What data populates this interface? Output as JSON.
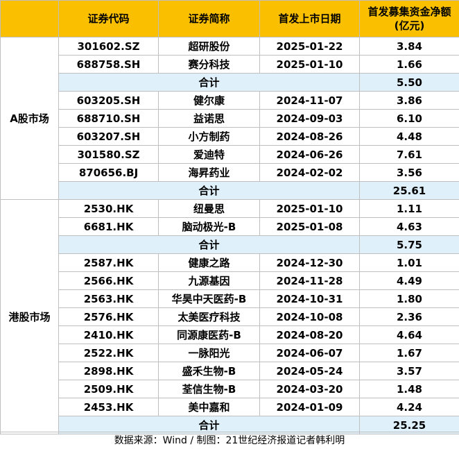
{
  "headers": [
    "证券代码",
    "证券简称",
    "首发上市日期",
    "首发募集资金净额",
    "(亿元)"
  ],
  "a_market": {
    "label": "A股市场",
    "group1": [
      {
        "code": "301602.SZ",
        "name": "超研股份",
        "date": "2025-01-22",
        "amount": "3.84"
      },
      {
        "code": "688758.SH",
        "name": "赛分科技",
        "date": "2025-01-10",
        "amount": "1.66"
      }
    ],
    "group1_total": {
      "label": "合计",
      "amount": "5.50"
    },
    "group2": [
      {
        "code": "603205.SH",
        "name": "健尔康",
        "date": "2024-11-07",
        "amount": "3.86"
      },
      {
        "code": "688710.SH",
        "name": "益诺思",
        "date": "2024-09-03",
        "amount": "6.10"
      },
      {
        "code": "603207.SH",
        "name": "小方制药",
        "date": "2024-08-26",
        "amount": "4.48"
      },
      {
        "code": "301580.SZ",
        "name": "爱迪特",
        "date": "2024-06-26",
        "amount": "7.61"
      },
      {
        "code": "870656.BJ",
        "name": "海昇药业",
        "date": "2024-02-02",
        "amount": "3.56"
      }
    ],
    "group2_total": {
      "label": "合计",
      "amount": "25.61"
    }
  },
  "hk_market": {
    "label": "港股市场",
    "group1": [
      {
        "code": "2530.HK",
        "name": "纽曼思",
        "date": "2025-01-10",
        "amount": "1.11"
      },
      {
        "code": "6681.HK",
        "name": "脑动极光-B",
        "date": "2025-01-08",
        "amount": "4.63"
      }
    ],
    "group1_total": {
      "label": "合计",
      "amount": "5.75"
    },
    "group2": [
      {
        "code": "2587.HK",
        "name": "健康之路",
        "date": "2024-12-30",
        "amount": "1.01"
      },
      {
        "code": "2566.HK",
        "name": "九源基因",
        "date": "2024-11-28",
        "amount": "4.49"
      },
      {
        "code": "2563.HK",
        "name": "华昊中天医药-B",
        "date": "2024-10-31",
        "amount": "1.80"
      },
      {
        "code": "2576.HK",
        "name": "太美医疗科技",
        "date": "2024-10-08",
        "amount": "2.36"
      },
      {
        "code": "2410.HK",
        "name": "同源康医药-B",
        "date": "2024-08-20",
        "amount": "4.64"
      },
      {
        "code": "2522.HK",
        "name": "一脉阳光",
        "date": "2024-06-07",
        "amount": "1.67"
      },
      {
        "code": "2898.HK",
        "name": "盛禾生物-B",
        "date": "2024-05-24",
        "amount": "3.57"
      },
      {
        "code": "2509.HK",
        "name": "荃信生物-B",
        "date": "2024-03-20",
        "amount": "1.48"
      },
      {
        "code": "2453.HK",
        "name": "美中嘉和",
        "date": "2024-01-09",
        "amount": "4.24"
      }
    ],
    "group2_total": {
      "label": "合计",
      "amount": "25.25"
    }
  },
  "footnote": "数据来源：Wind /  制图：21世纪经济报道记者韩利明"
}
